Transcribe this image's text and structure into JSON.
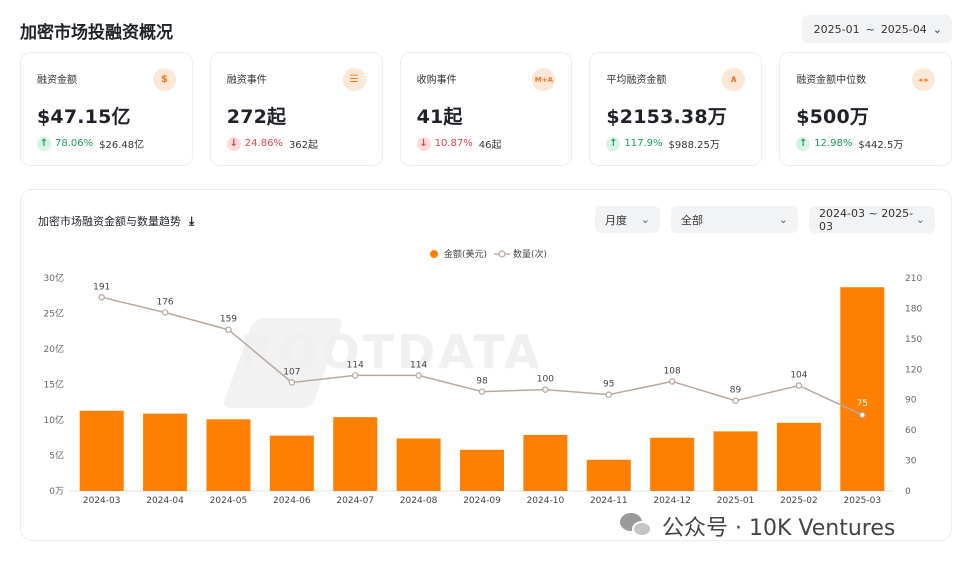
{
  "page": {
    "title": "加密市场投融资概况"
  },
  "header": {
    "date_start": "2025-01",
    "date_sep": "~",
    "date_end": "2025-04"
  },
  "cards": [
    {
      "label": "融资金额",
      "icon": "dollar-icon",
      "icon_glyph": "$",
      "value": "$47.15亿",
      "direction": "up",
      "change": "78.06%",
      "previous": "$26.48亿"
    },
    {
      "label": "融资事件",
      "icon": "list-icon",
      "icon_glyph": "☰",
      "value": "272起",
      "direction": "down",
      "change": "24.86%",
      "previous": "362起"
    },
    {
      "label": "收购事件",
      "icon": "ma-icon",
      "icon_glyph": "M+A",
      "value": "41起",
      "direction": "down",
      "change": "10.87%",
      "previous": "46起"
    },
    {
      "label": "平均融资金额",
      "icon": "trend-icon",
      "icon_glyph": "∧",
      "value": "$2153.38万",
      "direction": "up",
      "change": "117.9%",
      "previous": "$988.25万"
    },
    {
      "label": "融资金额中位数",
      "icon": "median-icon",
      "icon_glyph": "◂◃▸",
      "value": "$500万",
      "direction": "up",
      "change": "12.98%",
      "previous": "$442.5万"
    }
  ],
  "chart_panel": {
    "title": "加密市场融资金额与数量趋势",
    "period_select": "月度",
    "category_select": "全部",
    "range_start": "2024-03",
    "range_sep": "~",
    "range_end": "2025-03"
  },
  "watermark": "ROOTDATA",
  "footer": {
    "brand": "公众号 · 10K Ventures"
  },
  "chart_data": {
    "type": "bar",
    "categories": [
      "2024-03",
      "2024-04",
      "2024-05",
      "2024-06",
      "2024-07",
      "2024-08",
      "2024-09",
      "2024-10",
      "2024-11",
      "2024-12",
      "2025-01",
      "2025-02",
      "2025-03"
    ],
    "series": [
      {
        "name": "金额(美元)",
        "type": "bar",
        "axis": "left",
        "color": "#ff7f00",
        "values": [
          11.3,
          10.9,
          10.1,
          7.8,
          10.4,
          7.4,
          5.8,
          7.9,
          4.4,
          7.5,
          8.4,
          9.6,
          28.7
        ]
      },
      {
        "name": "数量(次)",
        "type": "line",
        "axis": "right",
        "color": "#b9a8a0",
        "values": [
          191,
          176,
          159,
          107,
          114,
          114,
          98,
          100,
          95,
          108,
          89,
          104,
          75
        ]
      }
    ],
    "y_left": {
      "range": [
        0,
        30
      ],
      "ticks": [
        "0万",
        "5亿",
        "10亿",
        "15亿",
        "20亿",
        "25亿",
        "30亿"
      ]
    },
    "y_right": {
      "range": [
        0,
        210
      ],
      "ticks": [
        "0",
        "30",
        "60",
        "90",
        "120",
        "150",
        "180",
        "210"
      ]
    },
    "legend_position": "top-center",
    "grid": false
  }
}
